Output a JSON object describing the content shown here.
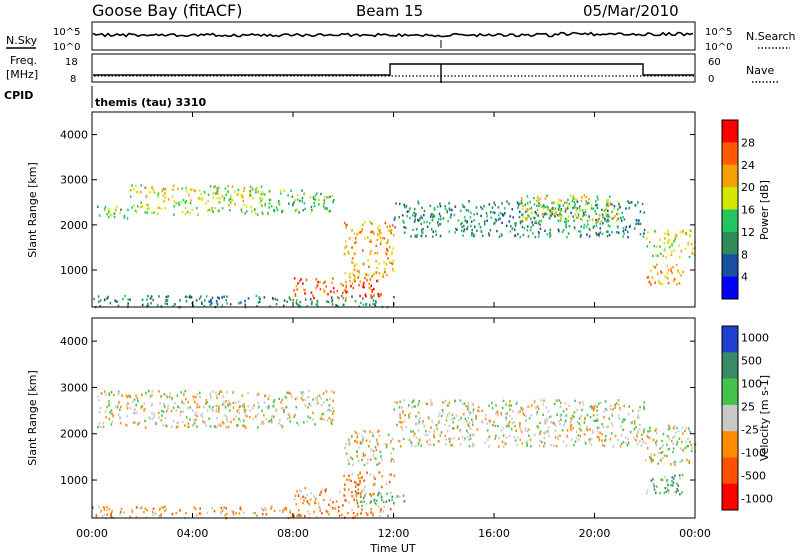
{
  "header": {
    "station": "Goose Bay (fitACF)",
    "beam": "Beam 15",
    "date": "05/Mar/2010"
  },
  "noise_panel": {
    "left_label": "N.Sky",
    "right_label": "N.Search",
    "left_ticks": [
      "10^5",
      "10^0"
    ],
    "right_ticks": [
      "10^5",
      "10^0"
    ]
  },
  "freq_panel": {
    "left_label_1": "Freq.",
    "left_label_2": "[MHz]",
    "right_label": "Nave",
    "left_ticks": [
      "18",
      "8"
    ],
    "right_ticks": [
      "60",
      "0"
    ]
  },
  "cpid": {
    "label": "CPID",
    "program": "themis (tau) 3310"
  },
  "time_axis": {
    "label": "Time UT",
    "ticks": [
      "00:00",
      "04:00",
      "08:00",
      "12:00",
      "16:00",
      "20:00",
      "00:00"
    ]
  },
  "colors": {
    "power": [
      "#0000ff",
      "#1a4fa0",
      "#2e8b57",
      "#22c55e",
      "#d4e600",
      "#f5a000",
      "#ff5a00",
      "#ff0000"
    ],
    "velocity": [
      "#2040d0",
      "#3a8a6a",
      "#44c44c",
      "#c8c8c8",
      "#ff8c00",
      "#ff5000",
      "#ff0000"
    ]
  },
  "chart_data": [
    {
      "type": "heatmap",
      "name_axis": "Slant Range [km]",
      "ylabel": "Slant Range [km]",
      "xlabel": "Time UT",
      "yticks": [
        1000,
        2000,
        3000,
        4000
      ],
      "ylim": [
        180,
        4500
      ],
      "xlim": [
        0,
        24
      ],
      "colorbar_label": "Power [dB]",
      "colorbar_ticks": [
        "28",
        "24",
        "20",
        "16",
        "12",
        "8",
        "4"
      ],
      "bands": [
        {
          "t0": 0.2,
          "t1": 1.5,
          "r0": 2150,
          "r1": 2450,
          "level": 3
        },
        {
          "t0": 1.5,
          "t1": 7.0,
          "r0": 2250,
          "r1": 2900,
          "level": 4
        },
        {
          "t0": 7.0,
          "t1": 9.6,
          "r0": 2300,
          "r1": 2800,
          "level": 3
        },
        {
          "t0": 10.0,
          "t1": 12.0,
          "r0": 1350,
          "r1": 2100,
          "level": 5
        },
        {
          "t0": 8.0,
          "t1": 11.5,
          "r0": 400,
          "r1": 850,
          "level": 6
        },
        {
          "t0": 10.0,
          "t1": 12.0,
          "r0": 850,
          "r1": 1300,
          "level": 5
        },
        {
          "t0": 12.0,
          "t1": 22.0,
          "r0": 1750,
          "r1": 2550,
          "level": 2
        },
        {
          "t0": 17.0,
          "t1": 21.0,
          "r0": 2100,
          "r1": 2700,
          "level": 4
        },
        {
          "t0": 22.0,
          "t1": 24.0,
          "r0": 1300,
          "r1": 1900,
          "level": 4
        },
        {
          "t0": 22.0,
          "t1": 23.5,
          "r0": 700,
          "r1": 1150,
          "level": 5
        },
        {
          "t0": 0.0,
          "t1": 12.0,
          "r0": 200,
          "r1": 450,
          "level": 2
        }
      ]
    },
    {
      "type": "heatmap",
      "ylabel": "Slant Range [km]",
      "xlabel": "Time UT",
      "yticks": [
        1000,
        2000,
        3000,
        4000
      ],
      "ylim": [
        180,
        4500
      ],
      "xlim": [
        0,
        24
      ],
      "colorbar_label": "Velocity [m s-1]",
      "colorbar_ticks": [
        "1000",
        "500",
        "100",
        "25",
        "-25",
        "-100",
        "-500",
        "-1000"
      ],
      "bands": [
        {
          "t0": 0.2,
          "t1": 9.6,
          "r0": 2150,
          "r1": 2950,
          "level": 3
        },
        {
          "t0": 10.0,
          "t1": 12.0,
          "r0": 1350,
          "r1": 2100,
          "level": 3
        },
        {
          "t0": 8.0,
          "t1": 11.5,
          "r0": 450,
          "r1": 850,
          "level": 4
        },
        {
          "t0": 10.0,
          "t1": 12.0,
          "r0": 850,
          "r1": 1200,
          "level": 4
        },
        {
          "t0": 10.5,
          "t1": 12.5,
          "r0": 450,
          "r1": 750,
          "level": 2
        },
        {
          "t0": 12.0,
          "t1": 22.0,
          "r0": 1750,
          "r1": 2750,
          "level": 3
        },
        {
          "t0": 22.0,
          "t1": 24.0,
          "r0": 1350,
          "r1": 2200,
          "level": 3
        },
        {
          "t0": 22.0,
          "t1": 23.6,
          "r0": 700,
          "r1": 1200,
          "level": 2
        },
        {
          "t0": 0.0,
          "t1": 12.0,
          "r0": 200,
          "r1": 450,
          "level": 4
        }
      ]
    }
  ]
}
